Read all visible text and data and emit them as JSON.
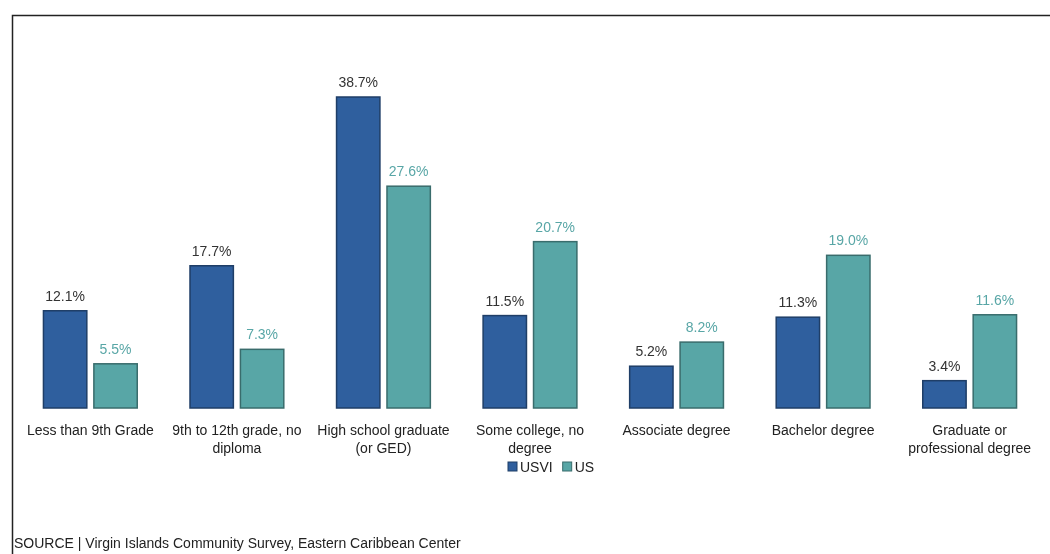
{
  "chart_data": {
    "type": "bar",
    "categories": [
      "Less than 9th Grade",
      "9th to 12th grade, no diploma",
      "High school graduate (or GED)",
      "Some college, no degree",
      "Associate degree",
      "Bachelor degree",
      "Graduate or professional degree"
    ],
    "series": [
      {
        "name": "USVI",
        "color": "#2f5f9e",
        "values": [
          12.1,
          17.7,
          38.7,
          11.5,
          5.2,
          11.3,
          3.4
        ],
        "value_labels": [
          "12.1%",
          "17.7%",
          "38.7%",
          "11.5%",
          "5.2%",
          "11.3%",
          "3.4%"
        ]
      },
      {
        "name": "US",
        "color": "#58a6a6",
        "values": [
          5.5,
          7.3,
          27.6,
          20.7,
          8.2,
          19.0,
          11.6
        ],
        "value_labels": [
          "5.5%",
          "7.3%",
          "27.6%",
          "20.7%",
          "8.2%",
          "19.0%",
          "11.6%"
        ]
      }
    ],
    "legend": "bottom",
    "annotations": [
      "SOURCE | Virgin Islands Community Survey, Eastern Caribbean Center"
    ]
  }
}
